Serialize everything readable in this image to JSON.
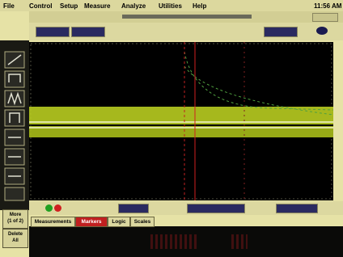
{
  "menu": [
    "File",
    "Control",
    "Setup",
    "Measure",
    "Analyze",
    "Utilities",
    "Help"
  ],
  "clock": "11:56 AM",
  "side_buttons": [
    [
      "More",
      "(1 of 2)"
    ],
    [
      "Delete",
      "All"
    ]
  ],
  "tabs": [
    "Measurements",
    "Markers",
    "Logic",
    "Scales"
  ]
}
